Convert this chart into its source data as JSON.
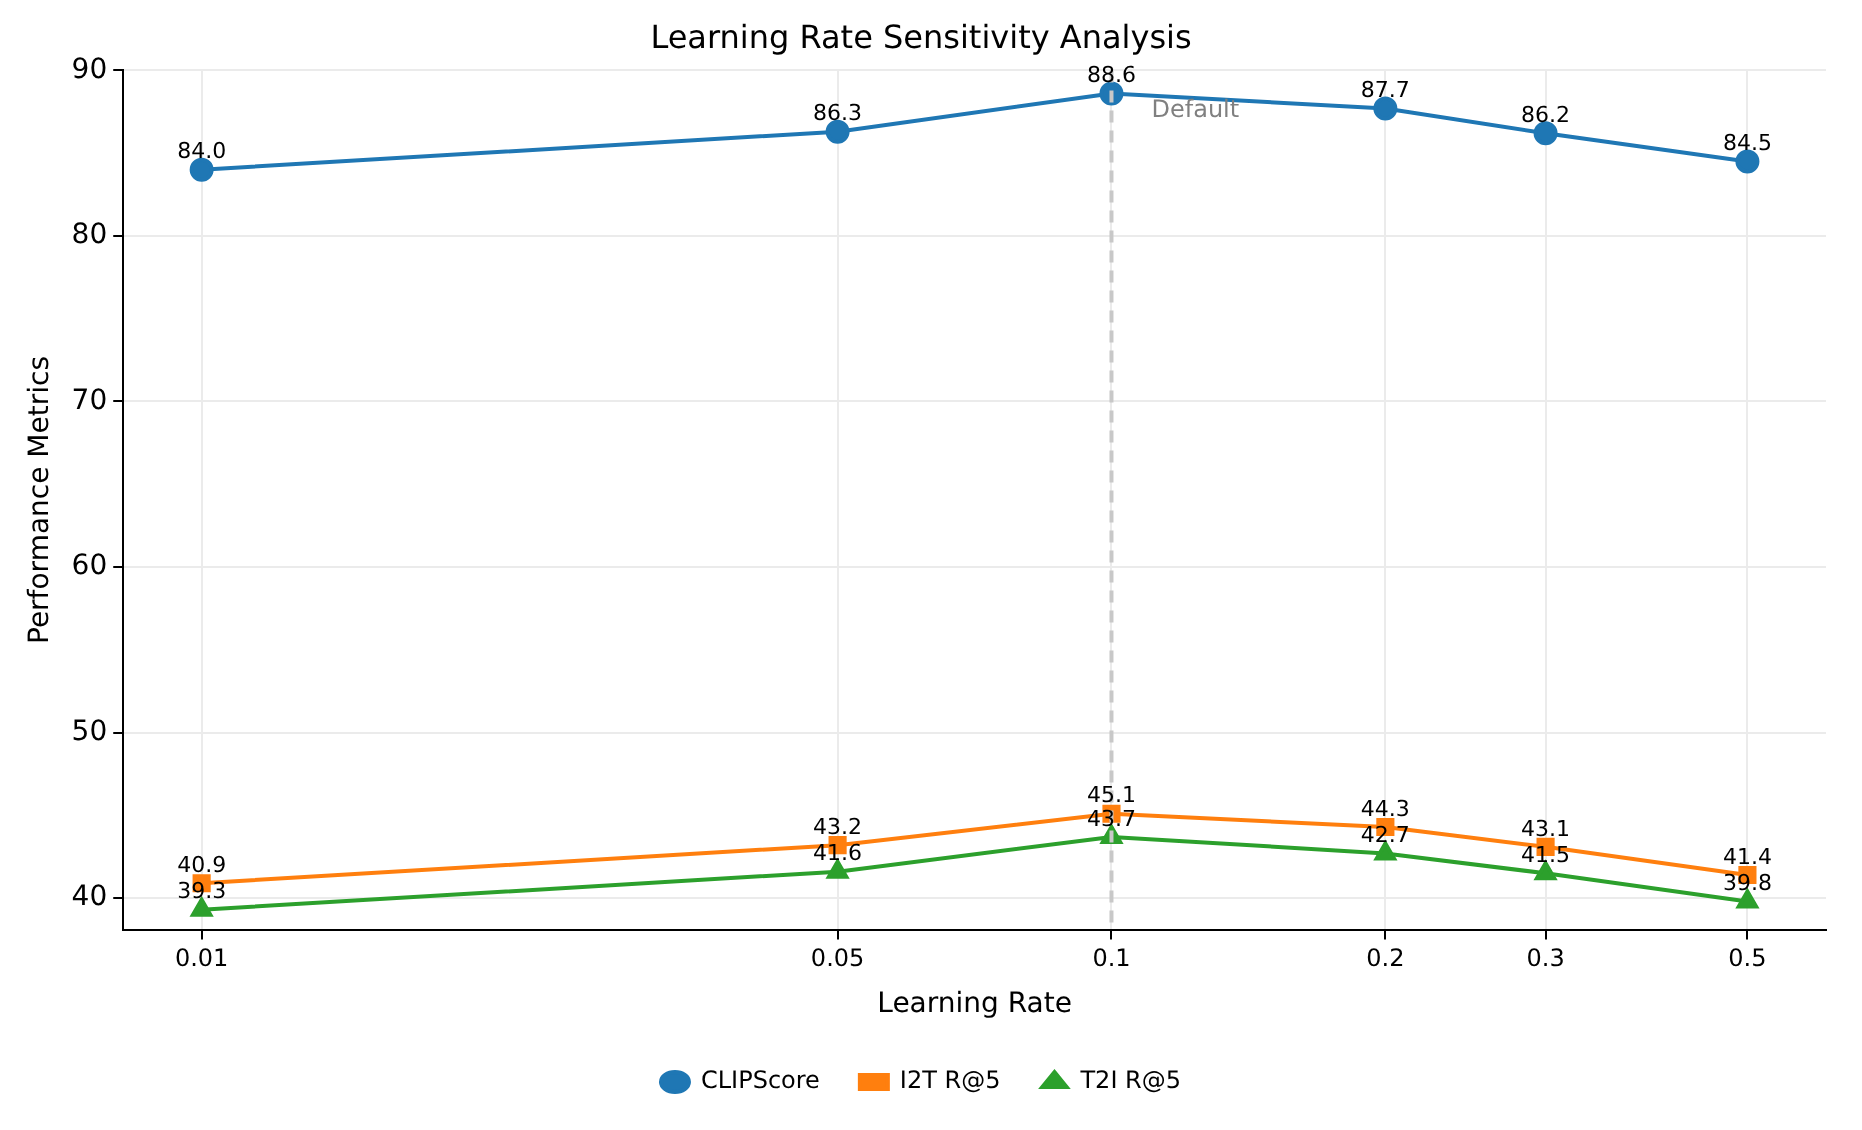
{
  "chart_data": {
    "type": "line",
    "title": "Learning Rate Sensitivity Analysis",
    "xlabel": "Learning Rate",
    "ylabel": "Performance Metrics",
    "x": [
      0.01,
      0.05,
      0.1,
      0.2,
      0.3,
      0.5
    ],
    "series": [
      {
        "name": "CLIPScore",
        "color": "#1f77b4",
        "marker": "circle",
        "values": [
          84.0,
          86.3,
          88.6,
          87.7,
          86.2,
          84.5
        ],
        "value_labels": [
          "84.0",
          "86.3",
          "88.6",
          "87.7",
          "86.2",
          "84.5"
        ]
      },
      {
        "name": "I2T R@5",
        "color": "#ff7f0e",
        "marker": "square",
        "values": [
          40.9,
          43.2,
          45.1,
          44.3,
          43.1,
          41.4
        ],
        "value_labels": [
          "40.9",
          "43.2",
          "45.1",
          "44.3",
          "43.1",
          "41.4"
        ]
      },
      {
        "name": "T2I R@5",
        "color": "#2ca02c",
        "marker": "triangle",
        "values": [
          39.3,
          41.6,
          43.7,
          42.7,
          41.5,
          39.8
        ],
        "value_labels": [
          "39.3",
          "41.6",
          "43.7",
          "42.7",
          "41.5",
          "39.8"
        ]
      }
    ],
    "log": "x",
    "xlim": [
      0.0082,
      0.61
    ],
    "xticks": [
      0.01,
      0.05,
      0.1,
      0.2,
      0.3,
      0.5
    ],
    "ylim": [
      38.1,
      90
    ],
    "yticks": [
      40,
      50,
      60,
      70,
      80,
      90
    ],
    "ref_lines": [
      {
        "axis": "x",
        "value": 0.1,
        "label": "Default",
        "color": "#c8c8c8",
        "line_style": "dashed"
      }
    ],
    "grid": true,
    "legend": "bottom",
    "line_style": "solid"
  }
}
